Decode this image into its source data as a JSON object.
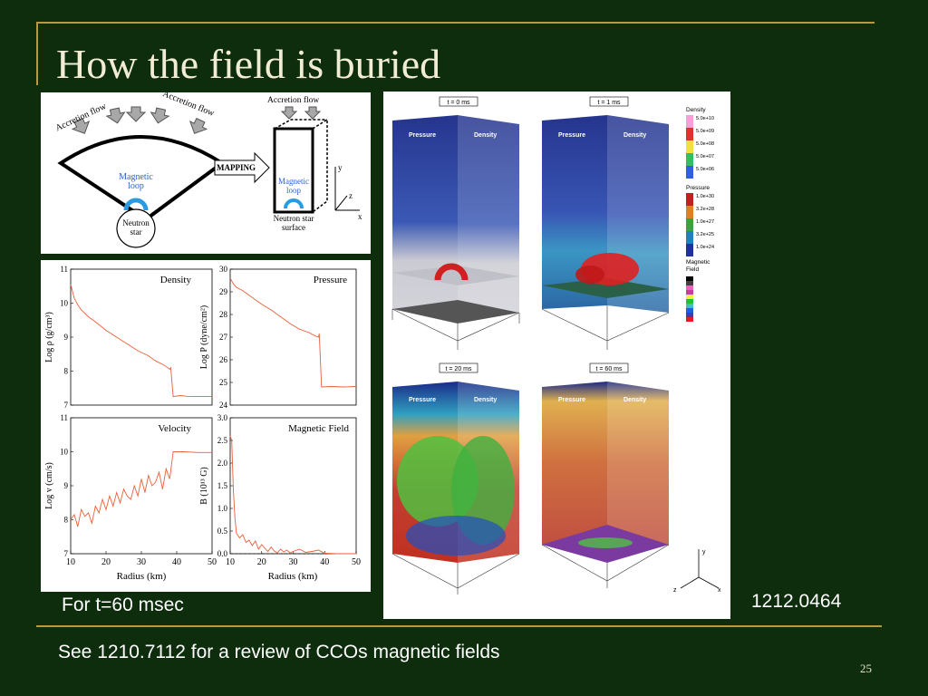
{
  "slide": {
    "title": "How the field is buried",
    "caption_time": "For t=60 msec",
    "arxiv_ref": "1212.0464",
    "footer_note": "See 1210.7112  for a review of CCOs magnetic fields",
    "page_number": "25"
  },
  "diagram": {
    "accretion_flow_left_1": "Accretion flow",
    "accretion_flow_left_2": "Accretion flow",
    "magnetic_loop": "Magnetic loop",
    "magnetic_loop_left_l1": "Magnetic",
    "magnetic_loop_left_l2": "loop",
    "neutron_star_l1": "Neutron",
    "neutron_star_l2": "star",
    "mapping": "MAPPING",
    "accretion_flow_right": "Accretion flow",
    "magnetic_loop_right_l1": "Magnetic",
    "magnetic_loop_right_l2": "loop",
    "ns_surface_l1": "Neutron star",
    "ns_surface_l2": "surface",
    "axis_y": "y",
    "axis_z": "z",
    "axis_x": "x",
    "colors": {
      "loop": "#2a9be0",
      "arrow": "#a8a8a8"
    }
  },
  "chart_data": [
    {
      "type": "line",
      "title": "Density",
      "ylabel": "Log ρ (g/cm³)",
      "xlim": [
        10,
        50
      ],
      "ylim": [
        7,
        11
      ],
      "yticks": [
        7,
        8,
        9,
        10,
        11
      ],
      "x": [
        10,
        11,
        12,
        13,
        15,
        17,
        20,
        23,
        26,
        29,
        32,
        34,
        36,
        37.5,
        38,
        38.3,
        39,
        41,
        43,
        47,
        50
      ],
      "y": [
        10.55,
        10.15,
        9.95,
        9.8,
        9.6,
        9.45,
        9.2,
        9.0,
        8.8,
        8.6,
        8.45,
        8.3,
        8.2,
        8.1,
        8.05,
        8.1,
        7.25,
        7.28,
        7.26,
        7.25,
        7.25
      ]
    },
    {
      "type": "line",
      "title": "Pressure",
      "ylabel": "Log P (dyne/cm²)",
      "xlim": [
        10,
        50
      ],
      "ylim": [
        24,
        30
      ],
      "yticks": [
        24,
        25,
        26,
        27,
        28,
        29,
        30
      ],
      "x": [
        10,
        11,
        12,
        14,
        17,
        20,
        23,
        26,
        29,
        32,
        35,
        37,
        38,
        38.3,
        39,
        42,
        46,
        50
      ],
      "y": [
        29.6,
        29.35,
        29.2,
        29.05,
        28.75,
        28.45,
        28.2,
        27.9,
        27.6,
        27.35,
        27.2,
        27.05,
        27.0,
        27.15,
        24.8,
        24.82,
        24.8,
        24.82
      ]
    },
    {
      "type": "line",
      "title": "Velocity",
      "ylabel": "Log v (cm/s)",
      "xlabel": "Radius (km)",
      "xlim": [
        10,
        50
      ],
      "ylim": [
        7,
        11
      ],
      "yticks": [
        7,
        8,
        9,
        10,
        11
      ],
      "xticks": [
        10,
        20,
        30,
        40,
        50
      ],
      "x": [
        10,
        11,
        12,
        13,
        14,
        15,
        16,
        17,
        18,
        19,
        20,
        21,
        22,
        23,
        24,
        25,
        26,
        27,
        28,
        29,
        30,
        31,
        32,
        33,
        34,
        35,
        36,
        37,
        38,
        38.5,
        39,
        42,
        46,
        50
      ],
      "y": [
        8.0,
        8.15,
        7.8,
        8.3,
        8.1,
        8.2,
        7.9,
        8.4,
        8.2,
        8.6,
        8.3,
        8.7,
        8.4,
        8.8,
        8.5,
        8.9,
        8.7,
        8.6,
        9.0,
        8.7,
        9.2,
        8.8,
        9.3,
        9.0,
        9.1,
        9.4,
        8.9,
        9.5,
        9.2,
        9.6,
        10.0,
        10.0,
        9.98,
        9.98
      ]
    },
    {
      "type": "line",
      "title": "Magnetic Field",
      "ylabel": "B (10¹³ G)",
      "xlabel": "Radius (km)",
      "xlim": [
        10,
        50
      ],
      "ylim": [
        0,
        3.0
      ],
      "yticks": [
        0.0,
        0.5,
        1.0,
        1.5,
        2.0,
        2.5,
        3.0
      ],
      "xticks": [
        10,
        20,
        30,
        40,
        50
      ],
      "x": [
        10,
        10.5,
        11,
        11.5,
        12,
        13,
        14,
        15,
        16,
        17,
        18,
        19,
        20,
        21,
        22,
        23,
        24,
        25,
        26,
        27,
        28,
        29,
        30,
        32,
        34,
        36,
        38,
        40,
        44,
        50
      ],
      "y": [
        2.6,
        2.5,
        1.4,
        0.8,
        0.45,
        0.35,
        0.42,
        0.25,
        0.3,
        0.18,
        0.28,
        0.1,
        0.2,
        0.12,
        0.05,
        0.15,
        0.06,
        0.02,
        0.1,
        0.04,
        0.08,
        0.02,
        0.05,
        0.1,
        0.03,
        0.05,
        0.08,
        0.01,
        0.0,
        0.0
      ]
    }
  ],
  "sim": {
    "panels": [
      {
        "time": "t =  0 ms",
        "left": "Pressure",
        "right": "Density"
      },
      {
        "time": "t =  1 ms",
        "left": "Pressure",
        "right": "Density"
      },
      {
        "time": "t = 20 ms",
        "left": "Pressure",
        "right": "Density"
      },
      {
        "time": "t = 60 ms",
        "left": "Pressure",
        "right": "Density"
      }
    ],
    "legend_density": {
      "title": "Density",
      "items": [
        "5.0e+10",
        "5.0e+09",
        "5.0e+08",
        "5.0e+07",
        "5.0e+06"
      ],
      "colors": [
        "#f5a0d8",
        "#e03030",
        "#f0e040",
        "#30c060",
        "#3060e0"
      ]
    },
    "legend_pressure": {
      "title": "Pressure",
      "items": [
        "1.0e+30",
        "3.2e+28",
        "1.0e+27",
        "3.2e+25",
        "1.0e+24"
      ],
      "colors": [
        "#c02020",
        "#e08020",
        "#40a040",
        "#2080c0",
        "#2030a0"
      ]
    },
    "legend_field": {
      "title_l1": "Magnetic",
      "title_l2": "Field",
      "colors": [
        "#000000",
        "#404040",
        "#f060c0",
        "#c040a0",
        "#f0f040",
        "#20c040",
        "#40c0c0",
        "#2060e0",
        "#4040a0",
        "#e02020"
      ]
    },
    "axis_y": "y",
    "axis_z": "z",
    "axis_x": "x"
  }
}
